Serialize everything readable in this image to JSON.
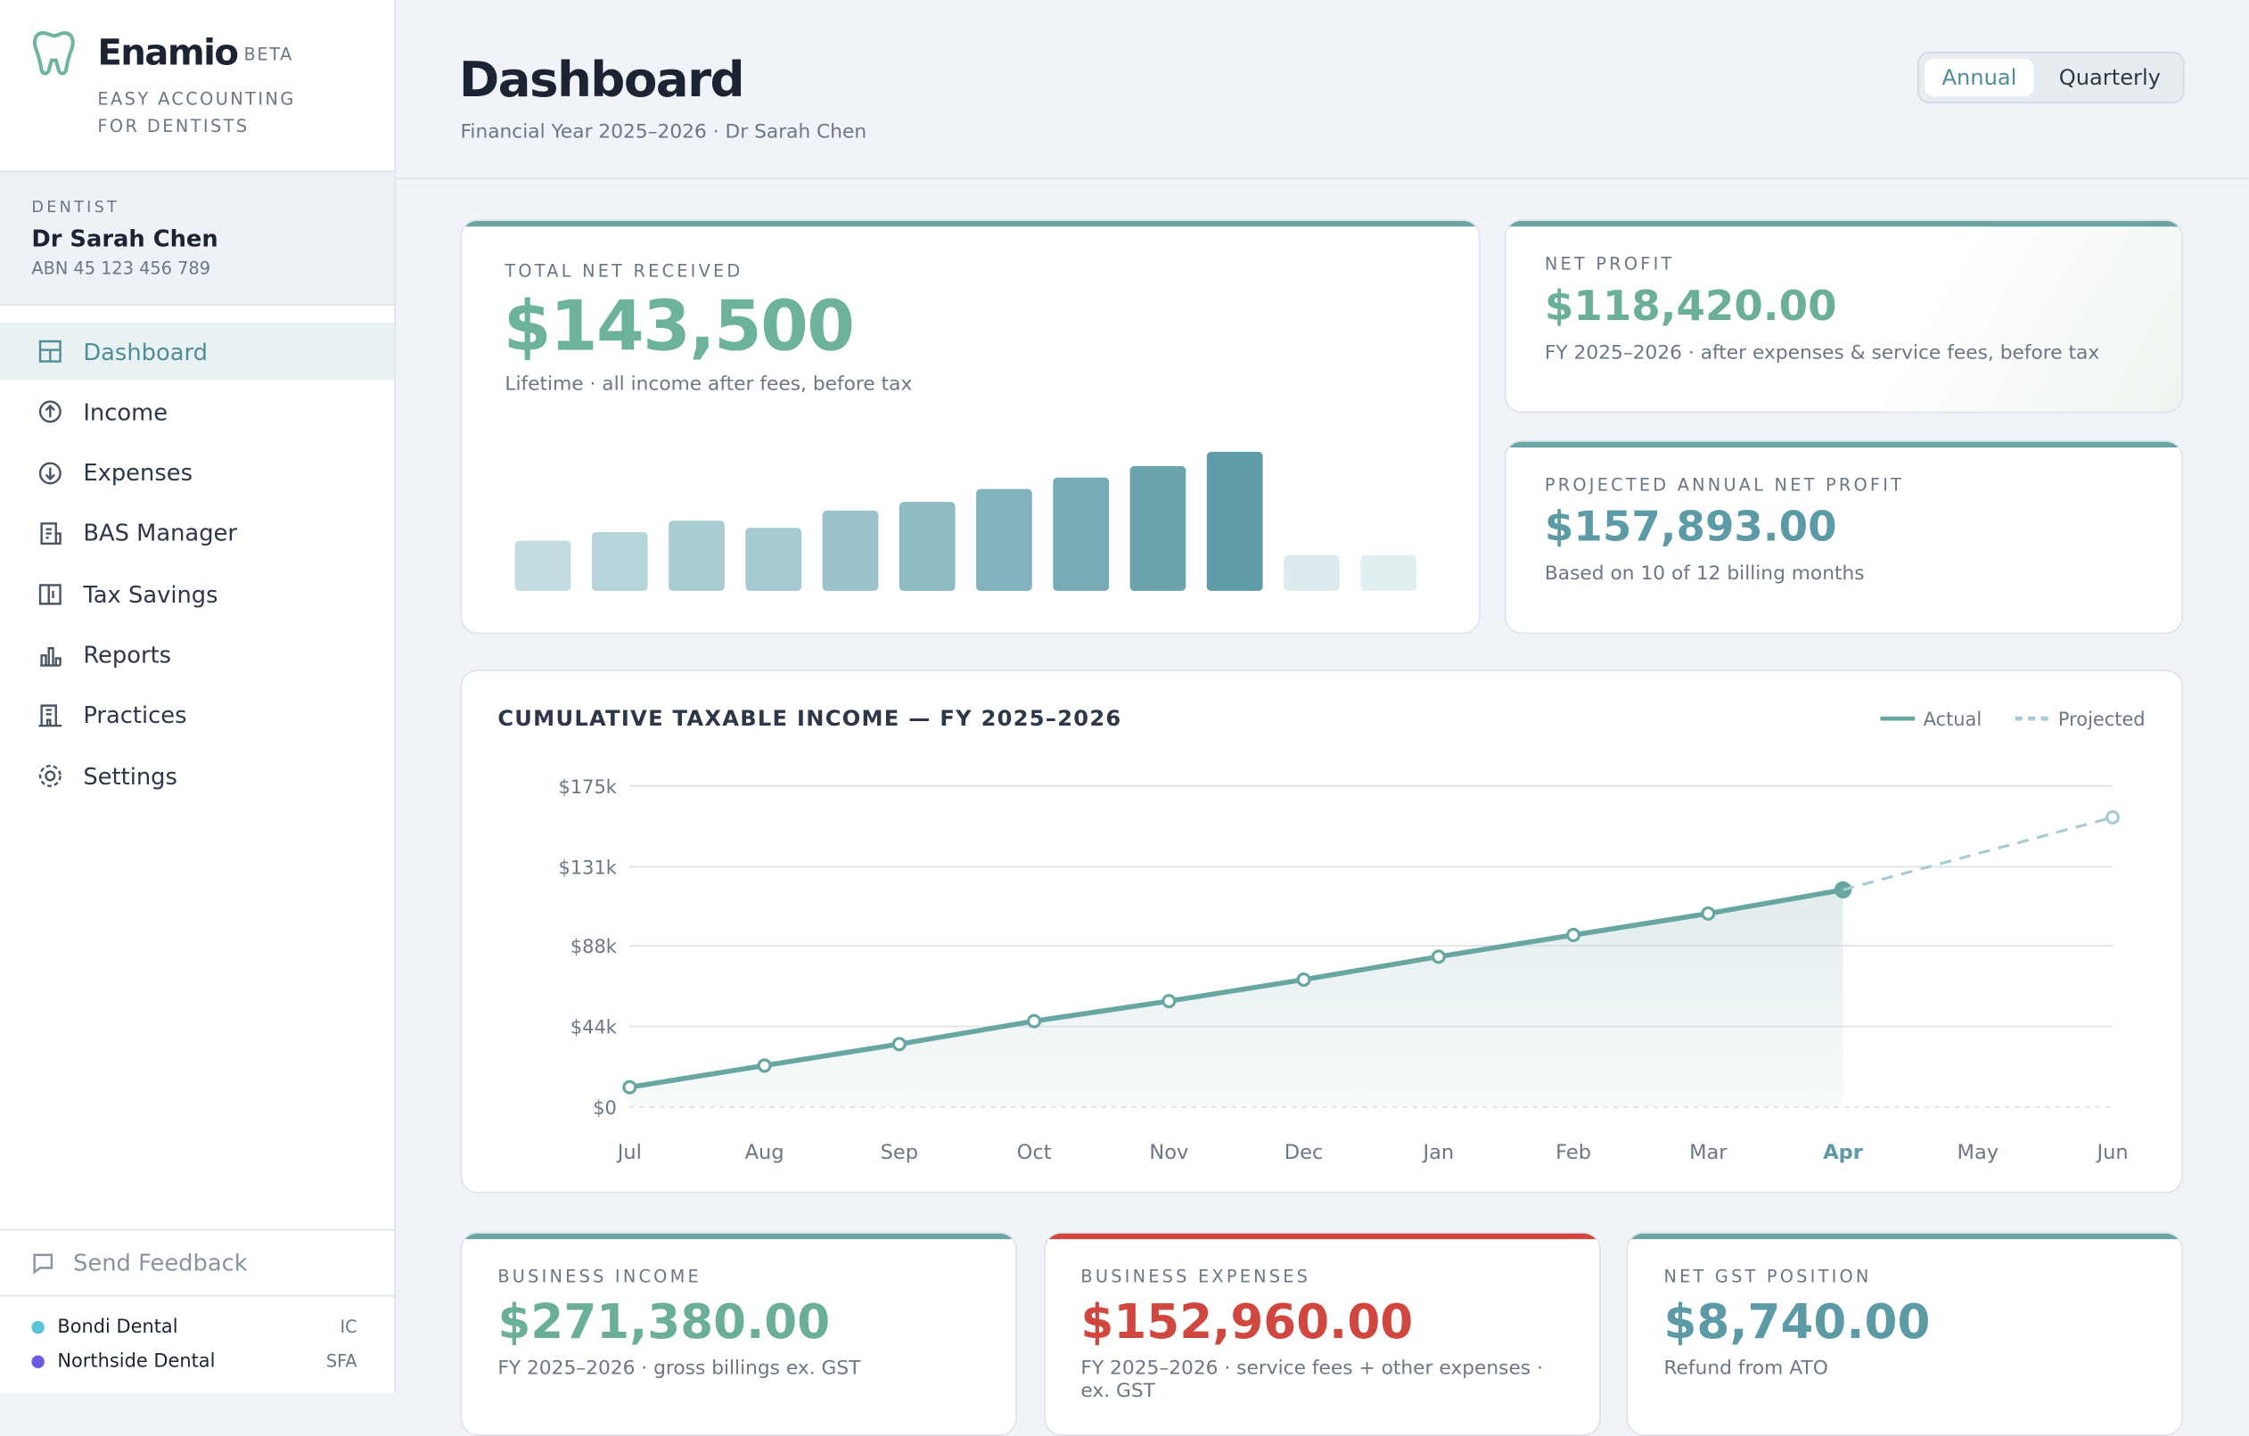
{
  "sidebar": {
    "brand": "Enamio",
    "badge": "BETA",
    "tagline": "EASY ACCOUNTING FOR DENTISTS",
    "dentist_label": "DENTIST",
    "dentist_name": "Dr Sarah Chen",
    "abn": "ABN 45 123 456 789",
    "nav": [
      "Dashboard",
      "Income",
      "Expenses",
      "BAS Manager",
      "Tax Savings",
      "Reports",
      "Practices",
      "Settings"
    ],
    "feedback": "Send Feedback",
    "practices": [
      {
        "name": "Bondi Dental",
        "code": "IC",
        "color": "#5bc3d9"
      },
      {
        "name": "Northside Dental",
        "code": "SFA",
        "color": "#6a5ae0"
      }
    ]
  },
  "header": {
    "title": "Dashboard",
    "subtitle": "Financial Year 2025–2026 · Dr Sarah Chen",
    "toggle": [
      "Annual",
      "Quarterly"
    ]
  },
  "cards": [
    {
      "label": "TOTAL NET RECEIVED",
      "value": "$143,500",
      "note": "Lifetime · all income after fees, before tax"
    },
    {
      "label": "NET PROFIT",
      "value": "$118,420.00",
      "note": "FY 2025–2026 · after expenses & service fees, before tax"
    },
    {
      "label": "PROJECTED ANNUAL NET PROFIT",
      "value": "$157,893.00",
      "note": "Based on 10 of 12 billing months"
    },
    {
      "label": "BUSINESS INCOME",
      "value": "$271,380.00",
      "note": "FY 2025–2026 · gross billings ex. GST"
    },
    {
      "label": "BUSINESS EXPENSES",
      "value": "$152,960.00",
      "note": "FY 2025–2026 · service fees + other expenses · ex. GST"
    },
    {
      "label": "NET GST POSITION",
      "value": "$8,740.00",
      "note": "Refund from ATO"
    }
  ],
  "chart_data": [
    {
      "type": "bar",
      "values": [
        35,
        41,
        49,
        44,
        56,
        62,
        71,
        79,
        87,
        97,
        25,
        25
      ],
      "colors": [
        "#c3dce1",
        "#b6d4da",
        "#a9ccd3",
        "#a6cad2",
        "#9ac3cb",
        "#8fbbc3",
        "#83b3bc",
        "#77abb5",
        "#6ca4ae",
        "#5f9ca8",
        "#ddebee",
        "#e2eff0"
      ],
      "ylim": [
        0,
        100
      ]
    },
    {
      "type": "line",
      "title": "CUMULATIVE TAXABLE INCOME — FY 2025–2026",
      "categories": [
        "Jul",
        "Aug",
        "Sep",
        "Oct",
        "Nov",
        "Dec",
        "Jan",
        "Feb",
        "Mar",
        "Apr",
        "May",
        "Jun"
      ],
      "series": [
        {
          "name": "Actual",
          "color": "#68a6a2",
          "values": [
            10900,
            22700,
            34400,
            46900,
            57800,
            69500,
            82000,
            93800,
            105500,
            118420,
            null,
            null
          ]
        },
        {
          "name": "Projected",
          "color": "#a9cbd3",
          "dashed": true,
          "values": [
            null,
            null,
            null,
            null,
            null,
            null,
            null,
            null,
            null,
            118420,
            138157,
            157893
          ]
        }
      ],
      "ylim": [
        0,
        175000
      ],
      "yticks": [
        {
          "value": 0,
          "label": "$0"
        },
        {
          "value": 44000,
          "label": "$44k"
        },
        {
          "value": 88000,
          "label": "$88k"
        },
        {
          "value": 131000,
          "label": "$131k"
        },
        {
          "value": 175000,
          "label": "$175k"
        }
      ],
      "grid": true,
      "highlight": 9
    }
  ]
}
